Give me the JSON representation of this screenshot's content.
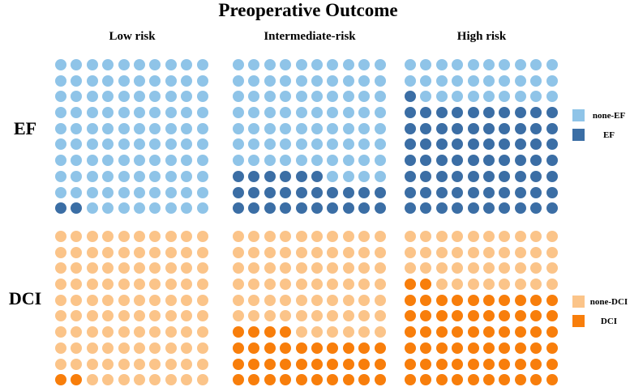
{
  "chart_data": {
    "type": "waffle",
    "title": "Preoperative Outcome",
    "categories": [
      "Low risk",
      "Intermediate-risk",
      "High risk"
    ],
    "layout": {
      "grid_rows": 10,
      "grid_cols": 10,
      "dot_unit_percent": 1,
      "fill_origin": "bottom-left",
      "legend_position": "right"
    },
    "rows": [
      {
        "label": "EF",
        "values": [
          2,
          26,
          71
        ],
        "colors": {
          "none": "#8FC4E8",
          "event": "#3B6EA5"
        },
        "legend": [
          "none-EF",
          "EF"
        ]
      },
      {
        "label": "DCI",
        "values": [
          2,
          34,
          62
        ],
        "colors": {
          "none": "#FBC489",
          "event": "#F87E0B"
        },
        "legend": [
          "none-DCI",
          "DCI"
        ]
      }
    ]
  }
}
